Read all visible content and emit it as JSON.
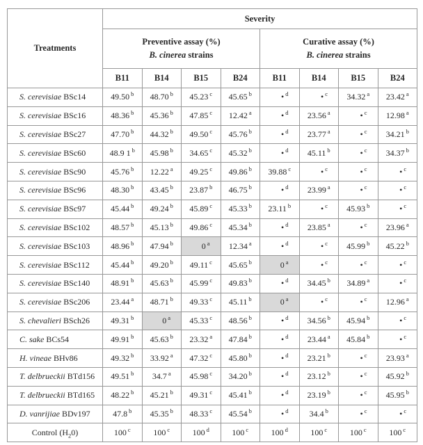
{
  "table": {
    "treatments_header": "Treatments",
    "severity_header": "Severity",
    "groups": [
      {
        "line1": "Preventive assay (%)",
        "line2_italic": "B. cinerea",
        "line2_rest": " strains"
      },
      {
        "line1": "Curative assay (%)",
        "line2_italic": "B. cinerea",
        "line2_rest": " strains"
      }
    ],
    "strain_columns": [
      "B11",
      "B14",
      "B15",
      "B24",
      "B11",
      "B14",
      "B15",
      "B24"
    ],
    "colors": {
      "border": "#979797",
      "outer_border": "#7d7d7d",
      "text": "#262626",
      "shaded_cell": "#d9d9d9",
      "background": "#ffffff"
    },
    "rows": [
      {
        "species": "S. cerevisiae",
        "strain": "BSc14",
        "cells": [
          {
            "v": "49.50",
            "s": "b"
          },
          {
            "v": "48.70",
            "s": "b"
          },
          {
            "v": "45.23",
            "s": "c"
          },
          {
            "v": "45.65",
            "s": "b"
          },
          {
            "v": "•",
            "s": "d"
          },
          {
            "v": "•",
            "s": "c"
          },
          {
            "v": "34.32",
            "s": "a"
          },
          {
            "v": "23.42",
            "s": "a"
          }
        ]
      },
      {
        "species": "S. cerevisiae",
        "strain": "BSc16",
        "cells": [
          {
            "v": "48.36",
            "s": "b"
          },
          {
            "v": "45.36",
            "s": "b"
          },
          {
            "v": "47.85",
            "s": "c"
          },
          {
            "v": "12.42",
            "s": "a"
          },
          {
            "v": "•",
            "s": "d"
          },
          {
            "v": "23.56",
            "s": "a"
          },
          {
            "v": "•",
            "s": "c"
          },
          {
            "v": "12.98",
            "s": "a"
          }
        ]
      },
      {
        "species": "S. cerevisiae",
        "strain": "BSc27",
        "cells": [
          {
            "v": "47.70",
            "s": "b"
          },
          {
            "v": "44.32",
            "s": "b"
          },
          {
            "v": "49.50",
            "s": "c"
          },
          {
            "v": "45.76",
            "s": "b"
          },
          {
            "v": "•",
            "s": "d"
          },
          {
            "v": "23.77",
            "s": "a"
          },
          {
            "v": "•",
            "s": "c"
          },
          {
            "v": "34.21",
            "s": "b"
          }
        ]
      },
      {
        "species": "S. cerevisiae",
        "strain": "BSc60",
        "cells": [
          {
            "v": "48.9 1",
            "s": "b"
          },
          {
            "v": "45.98",
            "s": "b"
          },
          {
            "v": "34.65",
            "s": "c"
          },
          {
            "v": "45.32",
            "s": "b"
          },
          {
            "v": "•",
            "s": "d"
          },
          {
            "v": "45.11",
            "s": "b"
          },
          {
            "v": "•",
            "s": "c"
          },
          {
            "v": "34.37",
            "s": "b"
          }
        ]
      },
      {
        "species": "S. cerevisiae",
        "strain": "BSc90",
        "cells": [
          {
            "v": "45.76",
            "s": "b"
          },
          {
            "v": "12.22",
            "s": "a"
          },
          {
            "v": "49.25",
            "s": "c"
          },
          {
            "v": "49.86",
            "s": "b"
          },
          {
            "v": "39.88",
            "s": "c"
          },
          {
            "v": "•",
            "s": "c"
          },
          {
            "v": "•",
            "s": "c"
          },
          {
            "v": "•",
            "s": "c"
          }
        ]
      },
      {
        "species": "S. cerevisiae",
        "strain": "BSc96",
        "cells": [
          {
            "v": "48.30",
            "s": "b"
          },
          {
            "v": "43.45",
            "s": "b"
          },
          {
            "v": "23.87",
            "s": "b"
          },
          {
            "v": "46.75",
            "s": "b"
          },
          {
            "v": "•",
            "s": "d"
          },
          {
            "v": "23.99",
            "s": "a"
          },
          {
            "v": "•",
            "s": "c"
          },
          {
            "v": "•",
            "s": "c"
          }
        ]
      },
      {
        "species": "S. cerevisiae",
        "strain": "BSc97",
        "cells": [
          {
            "v": "45.44",
            "s": "b"
          },
          {
            "v": "49.24",
            "s": "b"
          },
          {
            "v": "45.89",
            "s": "c"
          },
          {
            "v": "45.33",
            "s": "b"
          },
          {
            "v": "23.11",
            "s": "b"
          },
          {
            "v": "•",
            "s": "c"
          },
          {
            "v": "45.93",
            "s": "b"
          },
          {
            "v": "•",
            "s": "c"
          }
        ]
      },
      {
        "species": "S. cerevisiae",
        "strain": "BSc102",
        "cells": [
          {
            "v": "48.57",
            "s": "b"
          },
          {
            "v": "45.13",
            "s": "b"
          },
          {
            "v": "49.86",
            "s": "c"
          },
          {
            "v": "45.34",
            "s": "b"
          },
          {
            "v": "•",
            "s": "d"
          },
          {
            "v": "23.85",
            "s": "a"
          },
          {
            "v": "•",
            "s": "c"
          },
          {
            "v": "23.96",
            "s": "a"
          }
        ]
      },
      {
        "species": "S. cerevisiae",
        "strain": "BSc103",
        "cells": [
          {
            "v": "48.96",
            "s": "b"
          },
          {
            "v": "47.94",
            "s": "b"
          },
          {
            "v": "0",
            "s": "a",
            "shaded": true
          },
          {
            "v": "12.34",
            "s": "a"
          },
          {
            "v": "•",
            "s": "d"
          },
          {
            "v": "•",
            "s": "c"
          },
          {
            "v": "45.99",
            "s": "b"
          },
          {
            "v": "45.22",
            "s": "b"
          }
        ]
      },
      {
        "species": "S. cerevisiae",
        "strain": "BSc112",
        "cells": [
          {
            "v": "45.44",
            "s": "b"
          },
          {
            "v": "49.20",
            "s": "b"
          },
          {
            "v": "49.11",
            "s": "c"
          },
          {
            "v": "45.65",
            "s": "b"
          },
          {
            "v": "0",
            "s": "a",
            "shaded": true
          },
          {
            "v": "•",
            "s": "c"
          },
          {
            "v": "•",
            "s": "c"
          },
          {
            "v": "•",
            "s": "c"
          }
        ]
      },
      {
        "species": "S. cerevisiae",
        "strain": "BSc140",
        "cells": [
          {
            "v": "48.91",
            "s": "b"
          },
          {
            "v": "45.63",
            "s": "b"
          },
          {
            "v": "45.99",
            "s": "c"
          },
          {
            "v": "49.83",
            "s": "b"
          },
          {
            "v": "•",
            "s": "d"
          },
          {
            "v": "34.45",
            "s": "b"
          },
          {
            "v": "34.89",
            "s": "a"
          },
          {
            "v": "•",
            "s": "c"
          }
        ]
      },
      {
        "species": "S. cerevisiae",
        "strain": "BSc206",
        "cells": [
          {
            "v": "23.44",
            "s": "a"
          },
          {
            "v": "48.71",
            "s": "b"
          },
          {
            "v": "49.33",
            "s": "c"
          },
          {
            "v": "45.11",
            "s": "b"
          },
          {
            "v": "0",
            "s": "a",
            "shaded": true
          },
          {
            "v": "•",
            "s": "c"
          },
          {
            "v": "•",
            "s": "c"
          },
          {
            "v": "12.96",
            "s": "a"
          }
        ]
      },
      {
        "species": "S. chevalieri",
        "strain": "BSch26",
        "cells": [
          {
            "v": "49.31",
            "s": "b"
          },
          {
            "v": "0",
            "s": "a",
            "shaded": true
          },
          {
            "v": "45.33",
            "s": "c"
          },
          {
            "v": "48.56",
            "s": "b"
          },
          {
            "v": "•",
            "s": "d"
          },
          {
            "v": "34.56",
            "s": "b"
          },
          {
            "v": "45.94",
            "s": "b"
          },
          {
            "v": "•",
            "s": "c"
          }
        ]
      },
      {
        "species": "C. sake",
        "strain": "BCs54",
        "cells": [
          {
            "v": "49.91",
            "s": "b"
          },
          {
            "v": "45.63",
            "s": "b"
          },
          {
            "v": "23.32",
            "s": "a"
          },
          {
            "v": "47.84",
            "s": "b"
          },
          {
            "v": "•",
            "s": "d"
          },
          {
            "v": "23.44",
            "s": "a"
          },
          {
            "v": "45.84",
            "s": "b"
          },
          {
            "v": "•",
            "s": "c"
          }
        ]
      },
      {
        "species": "H. vineae",
        "strain": "BHv86",
        "cells": [
          {
            "v": "49.32",
            "s": "b"
          },
          {
            "v": "33.92",
            "s": "a"
          },
          {
            "v": "47.32",
            "s": "c"
          },
          {
            "v": "45.80",
            "s": "b"
          },
          {
            "v": "•",
            "s": "d"
          },
          {
            "v": "23.21",
            "s": "b"
          },
          {
            "v": "•",
            "s": "c"
          },
          {
            "v": "23.93",
            "s": "a"
          }
        ]
      },
      {
        "species": "T. delbrueckii",
        "strain": "BTd156",
        "cells": [
          {
            "v": "49.51",
            "s": "b"
          },
          {
            "v": "34.7",
            "s": "a"
          },
          {
            "v": "45.98",
            "s": "c"
          },
          {
            "v": "34.20",
            "s": "b"
          },
          {
            "v": "•",
            "s": "d"
          },
          {
            "v": "23.12",
            "s": "b"
          },
          {
            "v": "•",
            "s": "c"
          },
          {
            "v": "45.92",
            "s": "b"
          }
        ]
      },
      {
        "species": "T. delbrueckii",
        "strain": "BTd165",
        "cells": [
          {
            "v": "48.22",
            "s": "b"
          },
          {
            "v": "45.21",
            "s": "b"
          },
          {
            "v": "49.31",
            "s": "c"
          },
          {
            "v": "45.41",
            "s": "b"
          },
          {
            "v": "•",
            "s": "d"
          },
          {
            "v": "23.19",
            "s": "b"
          },
          {
            "v": "•",
            "s": "c"
          },
          {
            "v": "45.95",
            "s": "b"
          }
        ]
      },
      {
        "species": "D. vanrijiae",
        "strain": "BDv197",
        "cells": [
          {
            "v": "47.8",
            "s": "b"
          },
          {
            "v": "45.35",
            "s": "b"
          },
          {
            "v": "48.33",
            "s": "c"
          },
          {
            "v": "45.54",
            "s": "b"
          },
          {
            "v": "•",
            "s": "d"
          },
          {
            "v": "34.4",
            "s": "b"
          },
          {
            "v": "•",
            "s": "c"
          },
          {
            "v": "•",
            "s": "c"
          }
        ]
      },
      {
        "control": true,
        "label_pre": "Control (H",
        "label_sub": "2",
        "label_post": "0)",
        "cells": [
          {
            "v": "100",
            "s": "c"
          },
          {
            "v": "100",
            "s": "c"
          },
          {
            "v": "100",
            "s": "d"
          },
          {
            "v": "100",
            "s": "c"
          },
          {
            "v": "100",
            "s": "d"
          },
          {
            "v": "100",
            "s": "c"
          },
          {
            "v": "100",
            "s": "c"
          },
          {
            "v": "100",
            "s": "c"
          }
        ]
      }
    ]
  }
}
